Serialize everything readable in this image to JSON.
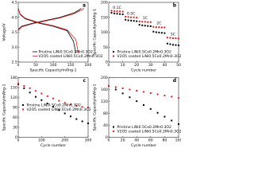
{
  "chart_data": [
    {
      "type": "line",
      "panel": "a",
      "xlabel": "Specific Capacity/mAhg-1",
      "ylabel": "Voltage/V",
      "xlim": [
        0,
        200
      ],
      "xticks": [
        0,
        50,
        100,
        150,
        200
      ],
      "ylim": [
        2.5,
        4.5
      ],
      "yticks": [
        {
          "value": 2.5,
          "label": "2.5"
        },
        {
          "value": 3,
          "label": "3.0"
        },
        {
          "value": 3.5,
          "label": "3.5"
        },
        {
          "value": 4,
          "label": "4.0"
        },
        {
          "value": 4.5,
          "label": "4.5"
        }
      ],
      "legend": "lower center",
      "series": [
        {
          "name": "Pristine LiNi0.5Co0.2Mn0.3O2",
          "color": "#000000",
          "x": [
            0,
            10,
            40,
            80,
            120,
            160,
            175,
            180,
            null,
            0,
            5,
            20,
            60,
            100,
            140,
            158,
            165
          ],
          "values": [
            3.6,
            3.7,
            3.8,
            3.9,
            4.0,
            4.15,
            4.25,
            4.3,
            null,
            4.3,
            4.1,
            3.95,
            3.8,
            3.7,
            3.55,
            3.2,
            2.8
          ]
        },
        {
          "name": "V2O5 coated LiNi0.5Co0.2Mn0.3O2",
          "color": "#e31a1c",
          "x": [
            0,
            10,
            40,
            80,
            120,
            160,
            180,
            188,
            null,
            0,
            5,
            20,
            60,
            100,
            140,
            165,
            172
          ],
          "values": [
            3.55,
            3.68,
            3.78,
            3.88,
            3.98,
            4.12,
            4.24,
            4.3,
            null,
            4.3,
            4.12,
            3.97,
            3.82,
            3.72,
            3.58,
            3.25,
            2.8
          ]
        }
      ]
    },
    {
      "type": "scatter",
      "panel": "b",
      "xlabel": "Cycle number",
      "ylabel": "Specific Capacity/mAhg-1",
      "xlim": [
        0,
        50
      ],
      "xticks": [
        0,
        10,
        20,
        30,
        40,
        50
      ],
      "ylim": [
        0,
        200
      ],
      "yticks": [
        0,
        50,
        100,
        150,
        200
      ],
      "legend": "lower left",
      "annotations": [
        "0.1C",
        "0.5C",
        "1C",
        "2C",
        "5C"
      ],
      "series": [
        {
          "name": "Pristine LiNi0.5Co0.2Mn0.3O2",
          "color": "#000000",
          "x": [
            2,
            4,
            6,
            8,
            10,
            12,
            14,
            16,
            18,
            20,
            22,
            24,
            26,
            28,
            30,
            32,
            34,
            36,
            38,
            40,
            42,
            44,
            46,
            48,
            50
          ],
          "values": [
            165,
            163,
            162,
            161,
            160,
            142,
            140,
            139,
            138,
            137,
            125,
            123,
            122,
            121,
            120,
            102,
            100,
            99,
            98,
            97,
            62,
            60,
            58,
            57,
            56
          ]
        },
        {
          "name": "V2O5 coated LiNi0.5Co0.2Mn0.3O2",
          "color": "#e31a1c",
          "x": [
            2,
            4,
            6,
            8,
            10,
            12,
            14,
            16,
            18,
            20,
            22,
            24,
            26,
            28,
            30,
            32,
            34,
            36,
            38,
            40,
            42,
            44,
            46,
            48,
            50
          ],
          "values": [
            172,
            171,
            170,
            170,
            169,
            152,
            151,
            150,
            150,
            149,
            136,
            135,
            135,
            134,
            134,
            118,
            117,
            117,
            116,
            116,
            82,
            81,
            80,
            80,
            79
          ]
        }
      ]
    },
    {
      "type": "scatter",
      "panel": "c",
      "xlabel": "Cycle number",
      "ylabel": "Specific Capacity/mAhg-1",
      "xlim": [
        0,
        300
      ],
      "xticks": [
        0,
        100,
        200,
        300
      ],
      "ylim": [
        0,
        180
      ],
      "yticks": [
        0,
        30,
        60,
        90,
        120,
        150,
        180
      ],
      "legend": "center left",
      "series": [
        {
          "name": "Pristine LiNi0.5Co0.2Mn0.3O2",
          "color": "#000000",
          "x": [
            0,
            25,
            50,
            75,
            100,
            125,
            150,
            175,
            200,
            225,
            250,
            275,
            300
          ],
          "values": [
            160,
            148,
            135,
            122,
            112,
            102,
            92,
            82,
            72,
            63,
            55,
            48,
            42
          ]
        },
        {
          "name": "V2O5 coated LiNi0.5Co0.2Mn0.3O2",
          "color": "#e31a1c",
          "x": [
            0,
            25,
            50,
            75,
            100,
            125,
            150,
            175,
            200,
            225,
            250,
            275,
            300
          ],
          "values": [
            162,
            155,
            148,
            140,
            132,
            124,
            117,
            110,
            104,
            99,
            95,
            92,
            90
          ]
        }
      ]
    },
    {
      "type": "scatter",
      "panel": "d",
      "xlabel": "Cycle number",
      "ylabel": "Specific Capacity/mAhg-1",
      "xlim": [
        0,
        100
      ],
      "xticks": [
        0,
        20,
        40,
        60,
        80,
        100
      ],
      "ylim": [
        0,
        200
      ],
      "yticks": [
        0,
        40,
        80,
        120,
        160,
        200
      ],
      "legend": "lower left",
      "series": [
        {
          "name": "Pristine LiNi0.5Co0.2Mn0.3O2",
          "color": "#000000",
          "x": [
            0,
            10,
            20,
            30,
            40,
            50,
            60,
            70,
            80,
            90,
            100
          ],
          "values": [
            172,
            160,
            147,
            134,
            121,
            108,
            95,
            82,
            69,
            56,
            44
          ]
        },
        {
          "name": "V2O5 coated LiNi0.5Co0.2Mn0.3O2",
          "color": "#e31a1c",
          "x": [
            0,
            10,
            20,
            30,
            40,
            50,
            60,
            70,
            80,
            90,
            100
          ],
          "values": [
            172,
            168,
            164,
            160,
            156,
            152,
            148,
            144,
            140,
            136,
            132
          ]
        }
      ]
    }
  ]
}
